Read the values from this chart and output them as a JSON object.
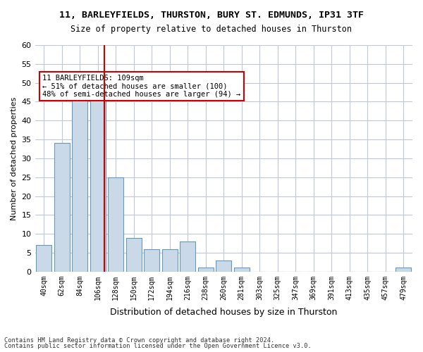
{
  "title1": "11, BARLEYFIELDS, THURSTON, BURY ST. EDMUNDS, IP31 3TF",
  "title2": "Size of property relative to detached houses in Thurston",
  "xlabel": "Distribution of detached houses by size in Thurston",
  "ylabel": "Number of detached properties",
  "categories": [
    "40sqm",
    "62sqm",
    "84sqm",
    "106sqm",
    "128sqm",
    "150sqm",
    "172sqm",
    "194sqm",
    "216sqm",
    "238sqm",
    "260sqm",
    "281sqm",
    "303sqm",
    "325sqm",
    "347sqm",
    "369sqm",
    "391sqm",
    "413sqm",
    "435sqm",
    "457sqm",
    "479sqm"
  ],
  "values": [
    7,
    34,
    50,
    48,
    25,
    9,
    6,
    6,
    8,
    1,
    3,
    1,
    0,
    0,
    0,
    0,
    0,
    0,
    0,
    0,
    1
  ],
  "bar_color": "#c9d9e8",
  "bar_edge_color": "#6699bb",
  "red_line_index": 3,
  "red_line_color": "#cc0000",
  "ylim": [
    0,
    60
  ],
  "yticks": [
    0,
    5,
    10,
    15,
    20,
    25,
    30,
    35,
    40,
    45,
    50,
    55,
    60
  ],
  "annotation_text": "11 BARLEYFIELDS: 109sqm\n← 51% of detached houses are smaller (100)\n48% of semi-detached houses are larger (94) →",
  "annotation_box_color": "#ffffff",
  "annotation_box_edge": "#cc0000",
  "footer1": "Contains HM Land Registry data © Crown copyright and database right 2024.",
  "footer2": "Contains public sector information licensed under the Open Government Licence v3.0.",
  "background_color": "#ffffff",
  "grid_color": "#c0c8d8"
}
